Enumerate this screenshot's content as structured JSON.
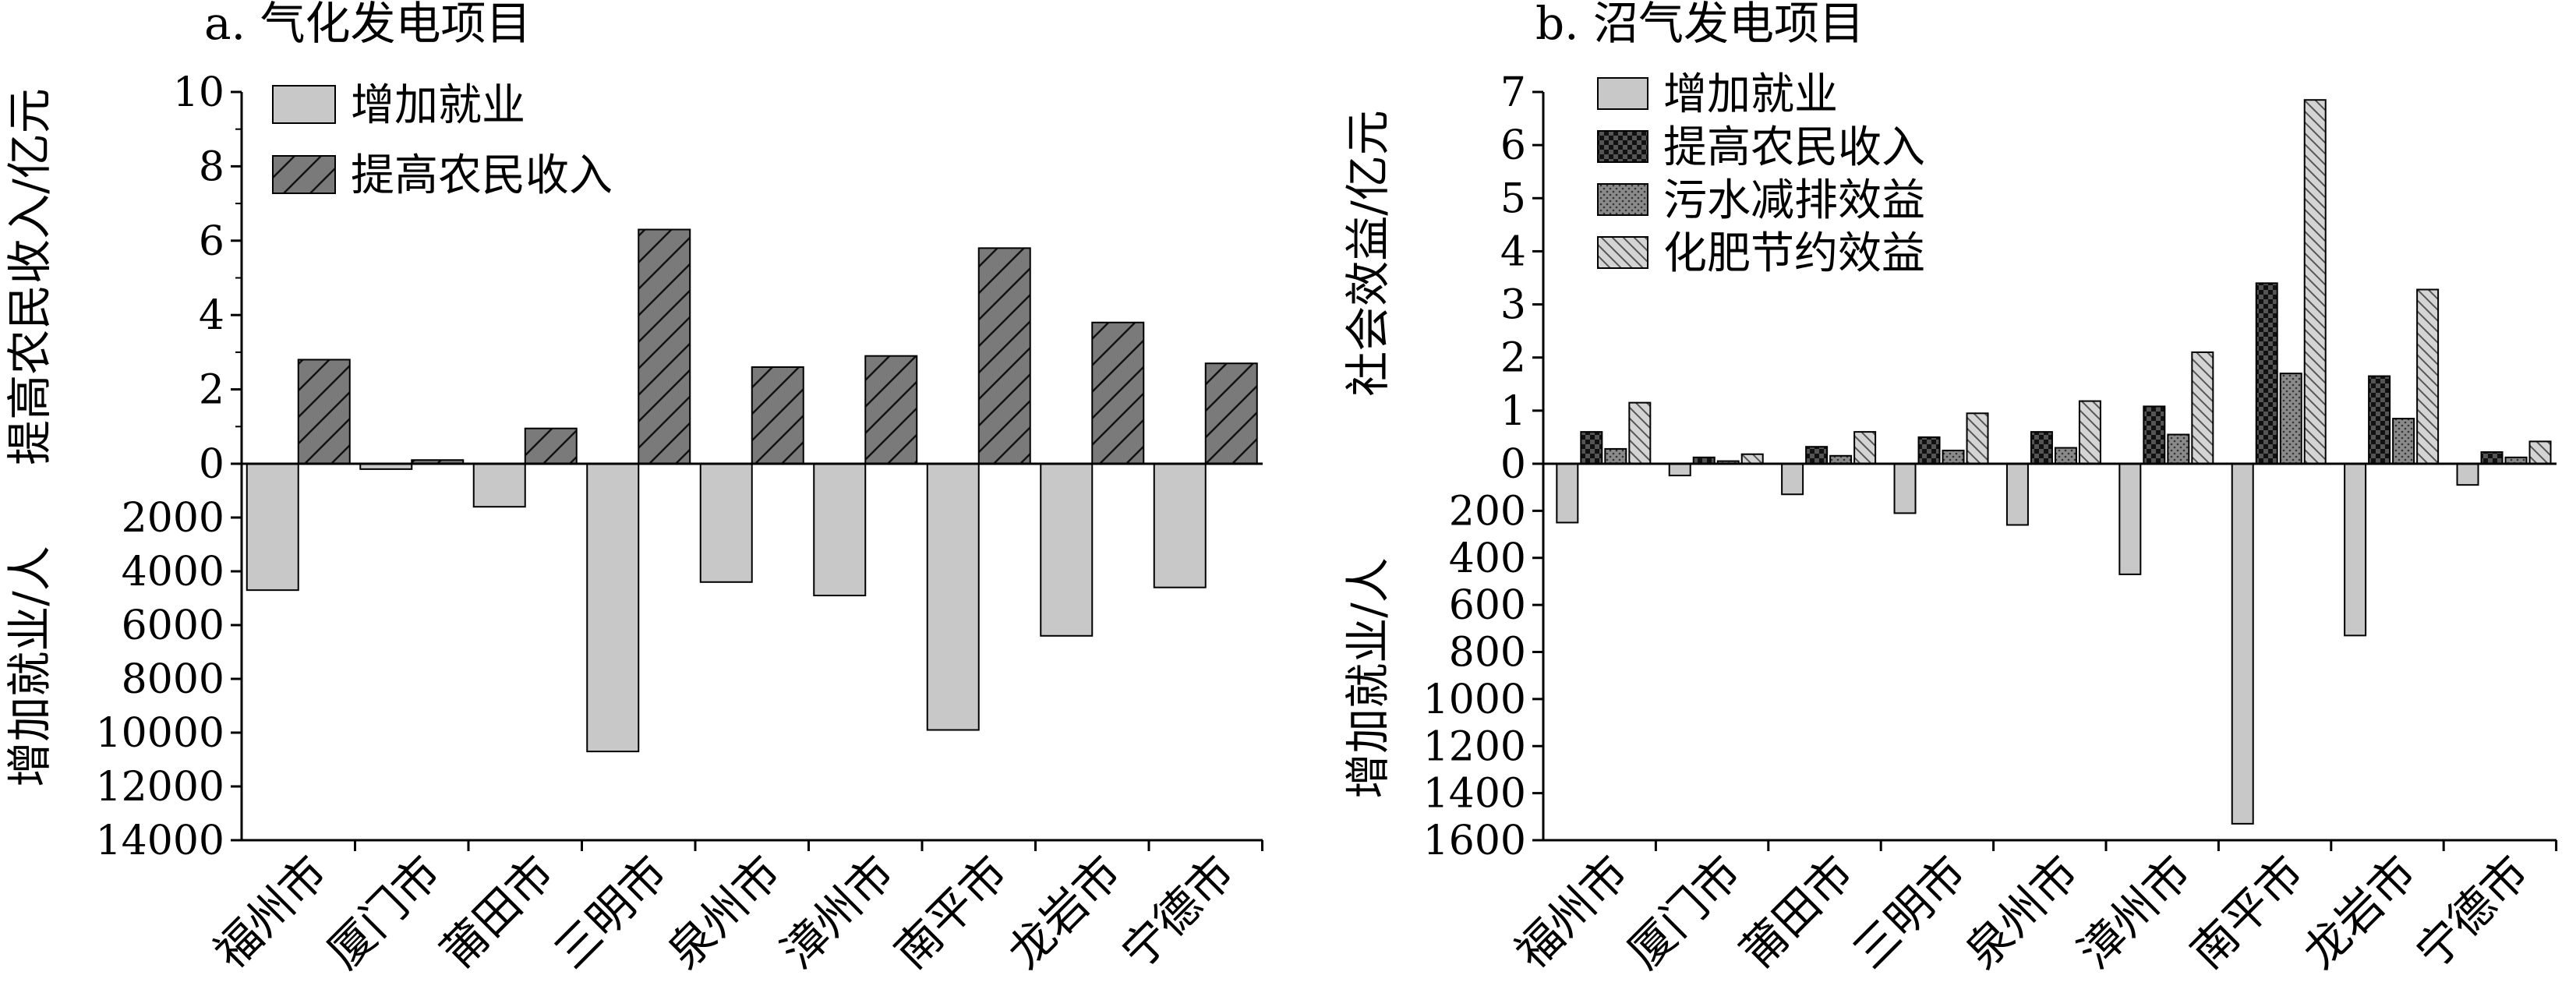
{
  "chart_data": [
    {
      "panel": "a",
      "title": "a. 气化发电项目",
      "type": "bar",
      "categories": [
        "福州市",
        "厦门市",
        "莆田市",
        "三明市",
        "泉州市",
        "漳州市",
        "南平市",
        "龙岩市",
        "宁德市"
      ],
      "upper_axis": {
        "label": "提高农民收入/亿元",
        "range": [
          0,
          10
        ],
        "ticks": [
          "0",
          "2",
          "4",
          "6",
          "8",
          "10"
        ]
      },
      "lower_axis": {
        "label": "增加就业/人",
        "range": [
          0,
          14000
        ],
        "ticks": [
          "2000",
          "4000",
          "6000",
          "8000",
          "10000",
          "12000",
          "14000"
        ]
      },
      "legend_position": "top-left",
      "series": [
        {
          "name": "增加就业",
          "axis": "lower",
          "fill": "#c8c8c8",
          "pattern": "solid",
          "values": [
            4700,
            200,
            1600,
            10700,
            4400,
            4900,
            9900,
            6400,
            4600
          ]
        },
        {
          "name": "提高农民收入",
          "axis": "upper",
          "fill": "#7a7a7a",
          "pattern": "diagonal",
          "values": [
            2.8,
            0.1,
            0.95,
            6.3,
            2.6,
            2.9,
            5.8,
            3.8,
            2.7
          ]
        }
      ]
    },
    {
      "panel": "b",
      "title": "b. 沼气发电项目",
      "type": "bar",
      "categories": [
        "福州市",
        "厦门市",
        "莆田市",
        "三明市",
        "泉州市",
        "漳州市",
        "南平市",
        "龙岩市",
        "宁德市"
      ],
      "upper_axis": {
        "label": "社会效益/亿元",
        "range": [
          0,
          7
        ],
        "ticks": [
          "0",
          "1",
          "2",
          "3",
          "4",
          "5",
          "6",
          "7"
        ]
      },
      "lower_axis": {
        "label": "增加就业/人",
        "range": [
          0,
          1600
        ],
        "ticks": [
          "200",
          "400",
          "600",
          "800",
          "1000",
          "1200",
          "1400",
          "1600"
        ]
      },
      "legend_position": "top-left",
      "series": [
        {
          "name": "增加就业",
          "axis": "lower",
          "fill": "#c8c8c8",
          "pattern": "solid",
          "values": [
            250,
            50,
            130,
            210,
            260,
            470,
            1530,
            730,
            90
          ]
        },
        {
          "name": "提高农民收入",
          "axis": "upper",
          "fill": "#111111",
          "pattern": "checker",
          "values": [
            0.6,
            0.12,
            0.32,
            0.5,
            0.6,
            1.08,
            3.4,
            1.65,
            0.22
          ]
        },
        {
          "name": "污水减排效益",
          "axis": "upper",
          "fill": "#8a8a8a",
          "pattern": "dots",
          "values": [
            0.28,
            0.05,
            0.15,
            0.25,
            0.3,
            0.55,
            1.7,
            0.85,
            0.12
          ]
        },
        {
          "name": "化肥节约效益",
          "axis": "upper",
          "fill": "#d4d4d4",
          "pattern": "diagonal",
          "values": [
            1.15,
            0.18,
            0.6,
            0.95,
            1.18,
            2.1,
            6.85,
            3.28,
            0.42
          ]
        }
      ]
    }
  ]
}
